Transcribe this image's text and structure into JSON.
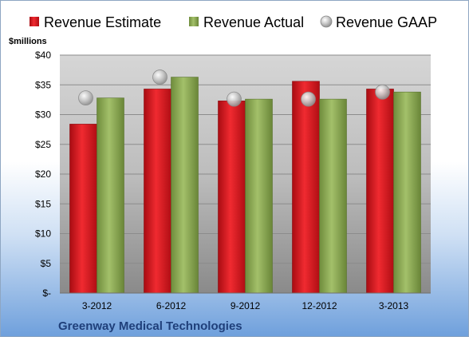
{
  "chart_data": {
    "type": "bar",
    "company": "Greenway Medical Technologies",
    "ylabel": "$millions",
    "categories": [
      "3-2012",
      "6-2012",
      "9-2012",
      "12-2012",
      "3-2013"
    ],
    "series": [
      {
        "name": "Revenue Estimate",
        "kind": "bar",
        "color": "#e8141e",
        "values": [
          28.4,
          34.3,
          32.3,
          35.6,
          34.3
        ]
      },
      {
        "name": "Revenue Actual",
        "kind": "bar",
        "color": "#8fb05a",
        "values": [
          32.8,
          36.3,
          32.6,
          32.6,
          33.8
        ]
      },
      {
        "name": "Revenue GAAP",
        "kind": "marker",
        "color": "#c0c0c0",
        "values": [
          32.8,
          36.3,
          32.6,
          32.6,
          33.8
        ]
      }
    ],
    "ylim": [
      0,
      40
    ],
    "yticks": [
      0,
      5,
      10,
      15,
      20,
      25,
      30,
      35,
      40
    ],
    "ytick_labels": [
      "$-",
      "$5",
      "$10",
      "$15",
      "$20",
      "$25",
      "$30",
      "$35",
      "$40"
    ],
    "grid": true,
    "legend": "top"
  }
}
